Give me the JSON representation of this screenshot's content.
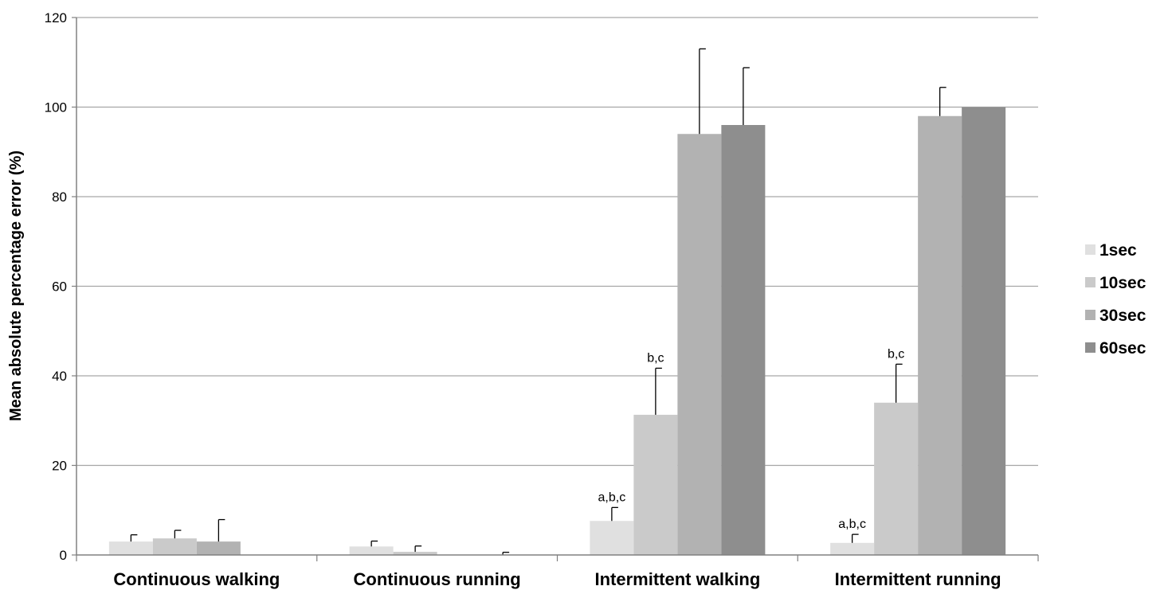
{
  "chart_data": {
    "type": "bar",
    "ylabel": "Mean absolute percentage error (%)",
    "ylim": [
      0,
      120
    ],
    "yticks": [
      0,
      20,
      40,
      60,
      80,
      100,
      120
    ],
    "grid": true,
    "legend_position": "right",
    "categories": [
      "Continuous walking",
      "Continuous running",
      "Intermittent walking",
      "Intermittent running"
    ],
    "series": [
      {
        "name": "1sec",
        "color": "#e0e0e0",
        "values": [
          3.0,
          1.9,
          7.6,
          2.7
        ],
        "errors": [
          1.5,
          1.2,
          3.0,
          1.9
        ]
      },
      {
        "name": "10sec",
        "color": "#cacaca",
        "values": [
          3.7,
          0.7,
          31.3,
          34.0
        ],
        "errors": [
          1.8,
          1.3,
          10.4,
          8.6
        ]
      },
      {
        "name": "30sec",
        "color": "#b2b2b2",
        "values": [
          3.0,
          0.0,
          94.0,
          98.0
        ],
        "errors": [
          4.9,
          0.0,
          19.0,
          6.4
        ]
      },
      {
        "name": "60sec",
        "color": "#8e8e8e",
        "values": [
          0.0,
          0.0,
          96.0,
          100.0
        ],
        "errors": [
          0.0,
          0.6,
          12.8,
          0.0
        ]
      }
    ],
    "annotations": [
      {
        "category_index": 2,
        "series_index": 0,
        "text": "a,b,c"
      },
      {
        "category_index": 2,
        "series_index": 1,
        "text": "b,c"
      },
      {
        "category_index": 3,
        "series_index": 0,
        "text": "a,b,c"
      },
      {
        "category_index": 3,
        "series_index": 1,
        "text": "b,c"
      }
    ]
  }
}
